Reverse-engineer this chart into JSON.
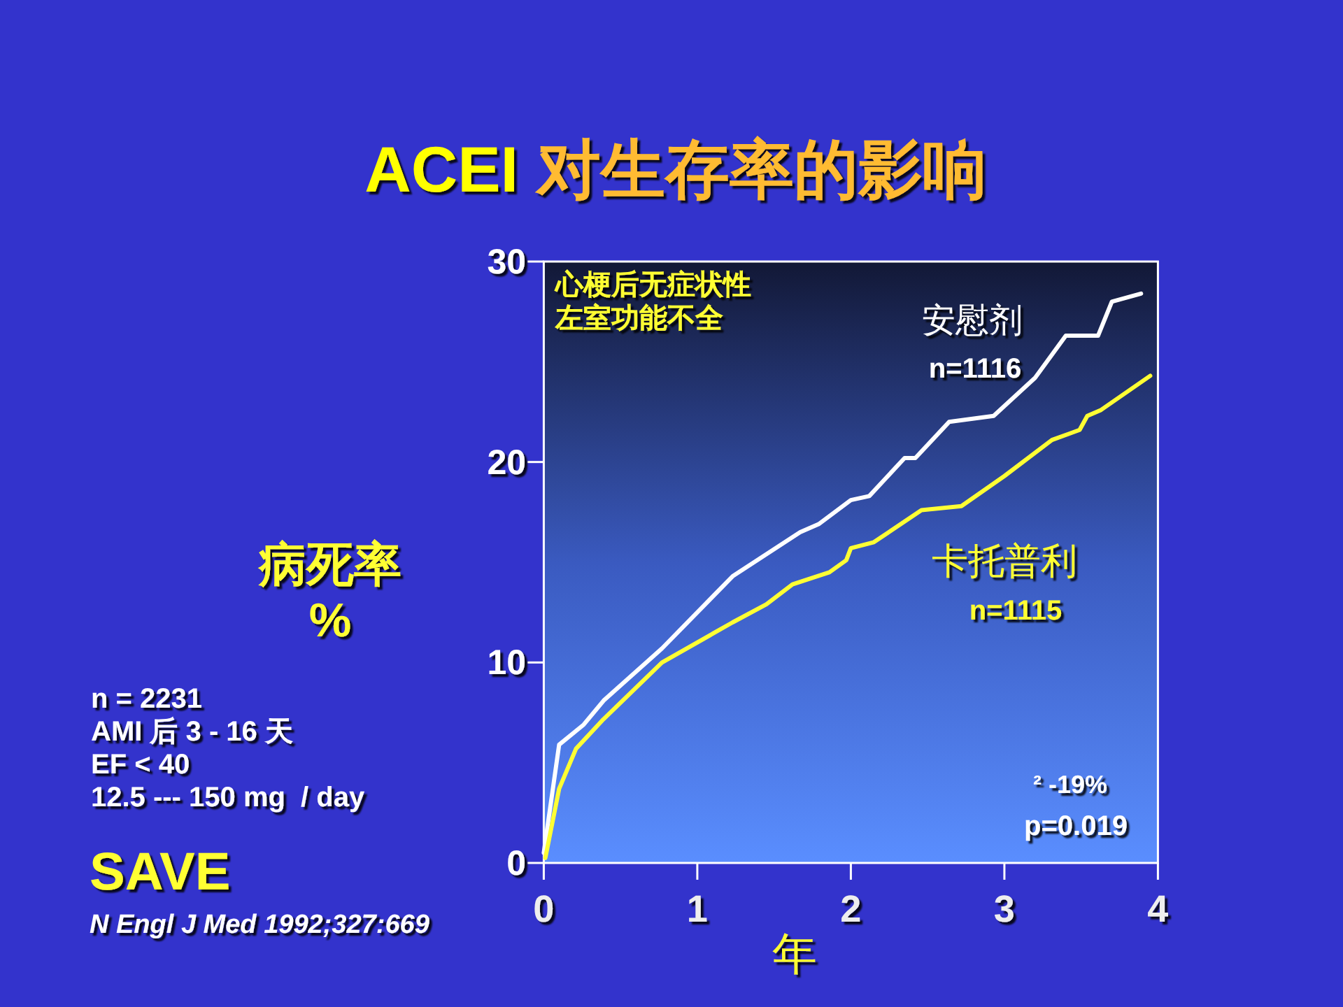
{
  "chart_data": {
    "type": "line",
    "title": "ACEI 对生存率的影响",
    "xlabel": "年",
    "ylabel": "病死率\n%",
    "xlim": [
      0,
      4
    ],
    "ylim": [
      0,
      30
    ],
    "xticks": [
      0,
      1,
      2,
      3,
      4
    ],
    "yticks": [
      0,
      10,
      20,
      30
    ],
    "series": [
      {
        "name": "安慰剂",
        "color": "#ffffff",
        "x": [
          0,
          0.1,
          0.26,
          0.39,
          0.77,
          1.23,
          1.67,
          1.79,
          2.0,
          2.12,
          2.35,
          2.42,
          2.64,
          2.93,
          3.2,
          3.4,
          3.61,
          3.7,
          3.89
        ],
        "values": [
          0.5,
          5.9,
          6.9,
          8.1,
          10.7,
          14.3,
          16.5,
          16.9,
          18.1,
          18.3,
          20.2,
          20.2,
          22.0,
          22.3,
          24.2,
          26.3,
          26.3,
          28.0,
          28.4
        ]
      },
      {
        "name": "卡托普利",
        "color": "#ffff33",
        "x": [
          0.01,
          0.1,
          0.21,
          0.38,
          0.77,
          1.23,
          1.45,
          1.62,
          1.86,
          1.97,
          2.0,
          2.15,
          2.46,
          2.72,
          3.0,
          3.31,
          3.49,
          3.54,
          3.63,
          3.95
        ],
        "values": [
          0.25,
          3.7,
          5.7,
          7.1,
          10.0,
          12.0,
          12.9,
          13.9,
          14.5,
          15.1,
          15.7,
          16.0,
          17.6,
          17.8,
          19.3,
          21.1,
          21.6,
          22.3,
          22.6,
          24.3
        ]
      }
    ],
    "annotations": [
      "心梗后无症状性",
      "左室功能不全",
      "n=1116",
      "n=1115",
      "² -19%",
      "p=0.019",
      "n = 2231\nAMI 后 3 - 16 天\nEF < 40\n12.5 --- 150 mg  / day",
      "SAVE",
      "N Engl J Med 1992;327:669"
    ]
  }
}
